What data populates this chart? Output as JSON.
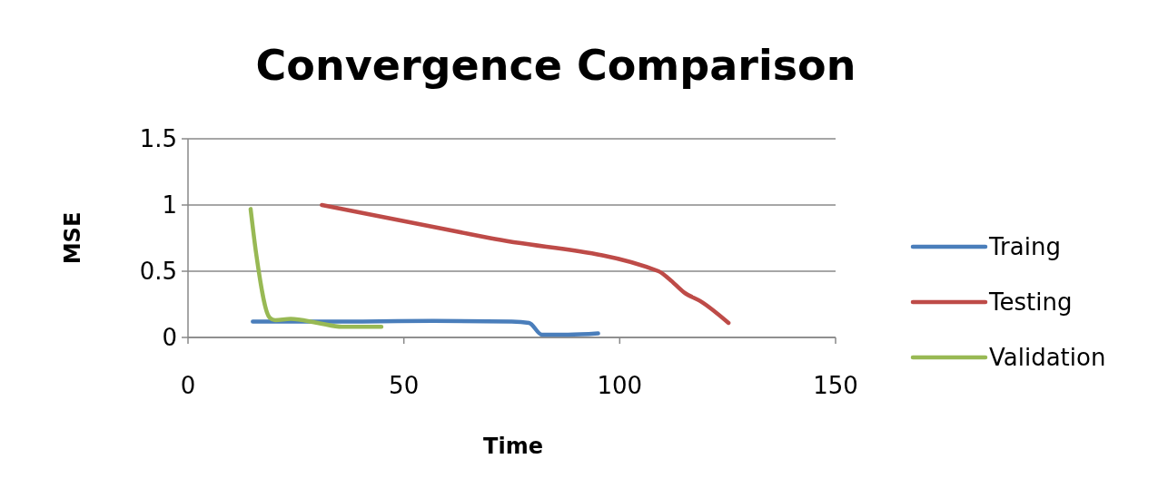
{
  "chart_data": {
    "type": "line",
    "title": "Convergence Comparison",
    "xlabel": "Time",
    "ylabel": "MSE",
    "xlim": [
      0,
      150
    ],
    "xticks": [
      0,
      50,
      100,
      150
    ],
    "ylim": [
      0,
      1.5
    ],
    "yticks": [
      0,
      0.5,
      1,
      1.5
    ],
    "grid": "y",
    "legend": "right",
    "marker": "none",
    "line_style": "solid",
    "series": [
      {
        "name": "Traing",
        "color": "#4a7ebb",
        "x": [
          15,
          40,
          57,
          75,
          79,
          82,
          88,
          95
        ],
        "values": [
          0.12,
          0.12,
          0.125,
          0.12,
          0.11,
          0.02,
          0.02,
          0.03
        ]
      },
      {
        "name": "Testing",
        "color": "#be4b48",
        "x": [
          31,
          70,
          109,
          111.5,
          114.9,
          118.9,
          125.2
        ],
        "values": [
          1.0,
          0.75,
          0.5,
          0.44,
          0.34,
          0.27,
          0.11
        ]
      },
      {
        "name": "Validation",
        "color": "#98b954",
        "x": [
          14.5,
          15.8,
          18.9,
          20.2,
          23.8,
          30,
          35.7,
          44.8
        ],
        "values": [
          0.97,
          0.63,
          0.15,
          0.13,
          0.14,
          0.11,
          0.08,
          0.08
        ]
      }
    ]
  }
}
